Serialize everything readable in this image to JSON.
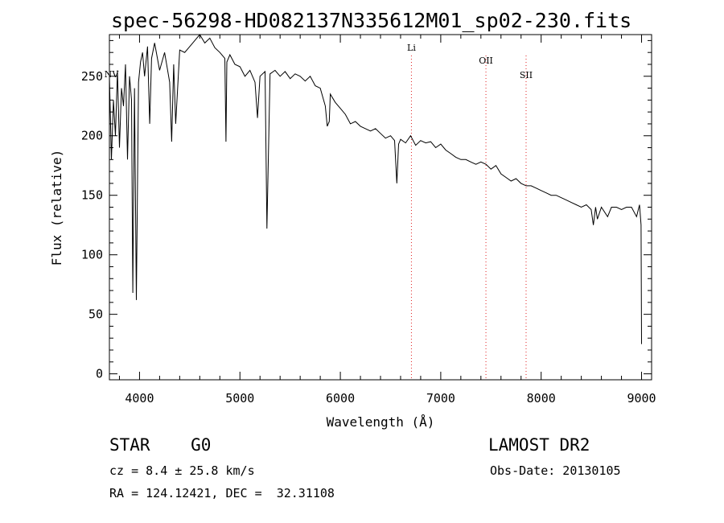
{
  "chart_data": {
    "type": "line",
    "title": "spec-56298-HD082137N335612M01_sp02-230.fits",
    "xlabel": "Wavelength (Å)",
    "ylabel": "Flux (relative)",
    "xlim": [
      3700,
      9100
    ],
    "ylim": [
      -5,
      285
    ],
    "xticks": [
      4000,
      5000,
      6000,
      7000,
      8000,
      9000
    ],
    "yticks": [
      0,
      50,
      100,
      150,
      200,
      250
    ],
    "grid": false,
    "line_color": "#000000",
    "marker_color": "#e02020",
    "markers": [
      {
        "label": "NV",
        "x": 3720
      },
      {
        "label": "Li",
        "x": 6708
      },
      {
        "label": "OII",
        "x": 7450
      },
      {
        "label": "SII",
        "x": 7850
      }
    ],
    "series": [
      {
        "x": [
          3700,
          3720,
          3740,
          3760,
          3780,
          3800,
          3820,
          3840,
          3860,
          3880,
          3900,
          3920,
          3933,
          3950,
          3968,
          3990,
          4010,
          4030,
          4050,
          4080,
          4101,
          4120,
          4150,
          4200,
          4250,
          4300,
          4320,
          4340,
          4360,
          4400,
          4450,
          4500,
          4550,
          4600,
          4650,
          4700,
          4750,
          4800,
          4850,
          4861,
          4870,
          4900,
          4950,
          5000,
          5050,
          5100,
          5150,
          5175,
          5200,
          5250,
          5269,
          5300,
          5350,
          5400,
          5450,
          5500,
          5550,
          5600,
          5650,
          5700,
          5750,
          5800,
          5850,
          5870,
          5890,
          5900,
          5950,
          6000,
          6050,
          6100,
          6150,
          6200,
          6250,
          6300,
          6350,
          6400,
          6450,
          6500,
          6540,
          6563,
          6580,
          6600,
          6650,
          6700,
          6750,
          6800,
          6850,
          6900,
          6950,
          7000,
          7050,
          7100,
          7150,
          7200,
          7250,
          7300,
          7350,
          7400,
          7450,
          7500,
          7550,
          7600,
          7650,
          7700,
          7750,
          7800,
          7850,
          7900,
          7950,
          8000,
          8050,
          8100,
          8150,
          8200,
          8250,
          8300,
          8350,
          8400,
          8450,
          8498,
          8520,
          8542,
          8560,
          8600,
          8662,
          8700,
          8750,
          8800,
          8850,
          8900,
          8950,
          8980,
          8995,
          9000
        ],
        "values": [
          250,
          180,
          230,
          200,
          255,
          190,
          240,
          225,
          260,
          180,
          250,
          230,
          68,
          240,
          62,
          245,
          262,
          270,
          250,
          275,
          210,
          265,
          278,
          255,
          270,
          245,
          195,
          260,
          210,
          272,
          270,
          275,
          280,
          285,
          278,
          282,
          274,
          270,
          265,
          195,
          262,
          268,
          260,
          258,
          250,
          255,
          245,
          215,
          250,
          254,
          122,
          252,
          255,
          250,
          254,
          248,
          252,
          250,
          246,
          250,
          242,
          240,
          225,
          208,
          212,
          235,
          228,
          223,
          218,
          210,
          212,
          208,
          206,
          204,
          206,
          202,
          198,
          200,
          196,
          160,
          193,
          197,
          194,
          200,
          192,
          196,
          194,
          195,
          190,
          193,
          188,
          185,
          182,
          180,
          180,
          178,
          176,
          178,
          176,
          172,
          175,
          168,
          165,
          162,
          164,
          160,
          158,
          158,
          156,
          154,
          152,
          150,
          150,
          148,
          146,
          144,
          142,
          140,
          142,
          138,
          125,
          140,
          130,
          140,
          132,
          140,
          140,
          138,
          140,
          140,
          132,
          142,
          125,
          25
        ]
      }
    ]
  },
  "footer": {
    "star_class": "STAR    G0",
    "cz": "cz = 8.4 ± 25.8 km/s",
    "coords": "RA = 124.12421, DEC =  32.31108",
    "survey": "LAMOST DR2",
    "obs_date": "Obs-Date: 20130105"
  }
}
